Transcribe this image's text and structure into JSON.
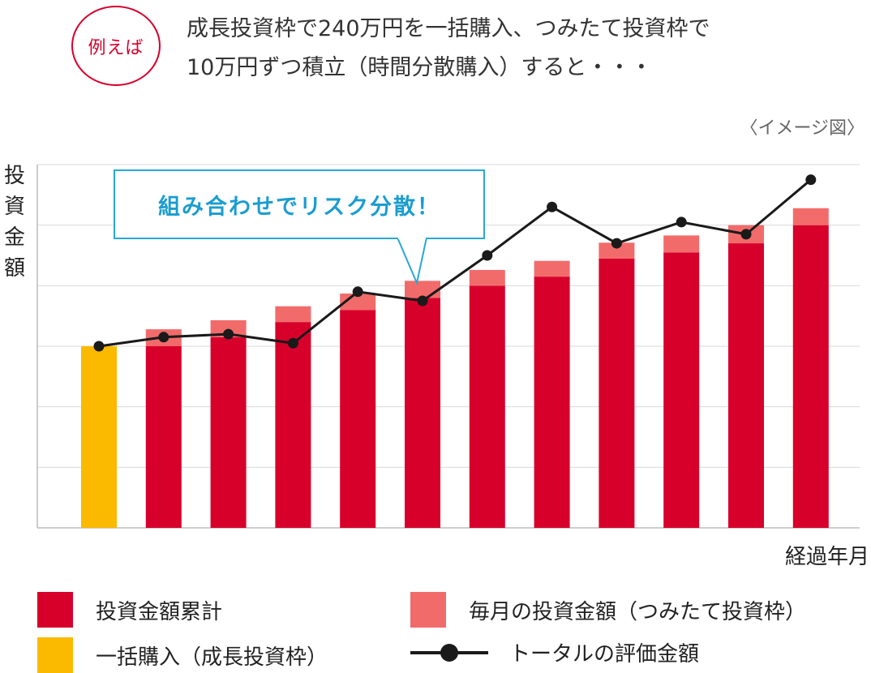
{
  "header": {
    "badge": "例えば",
    "headline_line1": "成長投資枠で240万円を一括購入、つみたて投資枠で",
    "headline_line2": "10万円ずつ積立（時間分散購入）すると・・・",
    "image_note": "〈イメージ図〉"
  },
  "callout": "組み合わせでリスク分散！",
  "colors": {
    "cumulative": "#d7002b",
    "monthly": "#f26b6b",
    "lump_sum": "#fbb900",
    "line": "#1a1a1a",
    "grid": "#d9d9d9",
    "callout_border": "#2aa7d6"
  },
  "chart_data": {
    "type": "bar",
    "ylabel": "投資金額",
    "xlabel": "経過年月",
    "grid": true,
    "ylim": [
      0,
      6
    ],
    "categories": [
      "",
      "",
      "",
      "",
      "",
      "",
      "",
      "",
      "",
      "",
      "",
      ""
    ],
    "series": [
      {
        "name": "一括購入（成長投資枠）",
        "kind": "bar",
        "color": "#fbb900",
        "values": [
          3.0,
          0,
          0,
          0,
          0,
          0,
          0,
          0,
          0,
          0,
          0,
          0
        ]
      },
      {
        "name": "投資金額累計",
        "kind": "bar-base",
        "color": "#d7002b",
        "values": [
          0,
          3.0,
          3.15,
          3.4,
          3.6,
          3.8,
          4.0,
          4.15,
          4.45,
          4.55,
          4.7,
          5.0
        ]
      },
      {
        "name": "毎月の投資金額（つみたて投資枠）",
        "kind": "bar-stack",
        "color": "#f26b6b",
        "values": [
          0,
          0.28,
          0.28,
          0.26,
          0.27,
          0.28,
          0.26,
          0.26,
          0.26,
          0.28,
          0.3,
          0.28
        ]
      },
      {
        "name": "トータルの評価金額",
        "kind": "line",
        "color": "#1a1a1a",
        "values": [
          3.0,
          3.15,
          3.2,
          3.05,
          3.9,
          3.75,
          4.5,
          5.3,
          4.7,
          5.05,
          4.85,
          5.75
        ]
      }
    ]
  },
  "legend": [
    {
      "label": "投資金額累計",
      "type": "box",
      "color": "#d7002b"
    },
    {
      "label": "毎月の投資金額（つみたて投資枠）",
      "type": "box",
      "color": "#f26b6b"
    },
    {
      "label": "一括購入（成長投資枠）",
      "type": "box",
      "color": "#fbb900"
    },
    {
      "label": "トータルの評価金額",
      "type": "line",
      "color": "#1a1a1a"
    }
  ]
}
